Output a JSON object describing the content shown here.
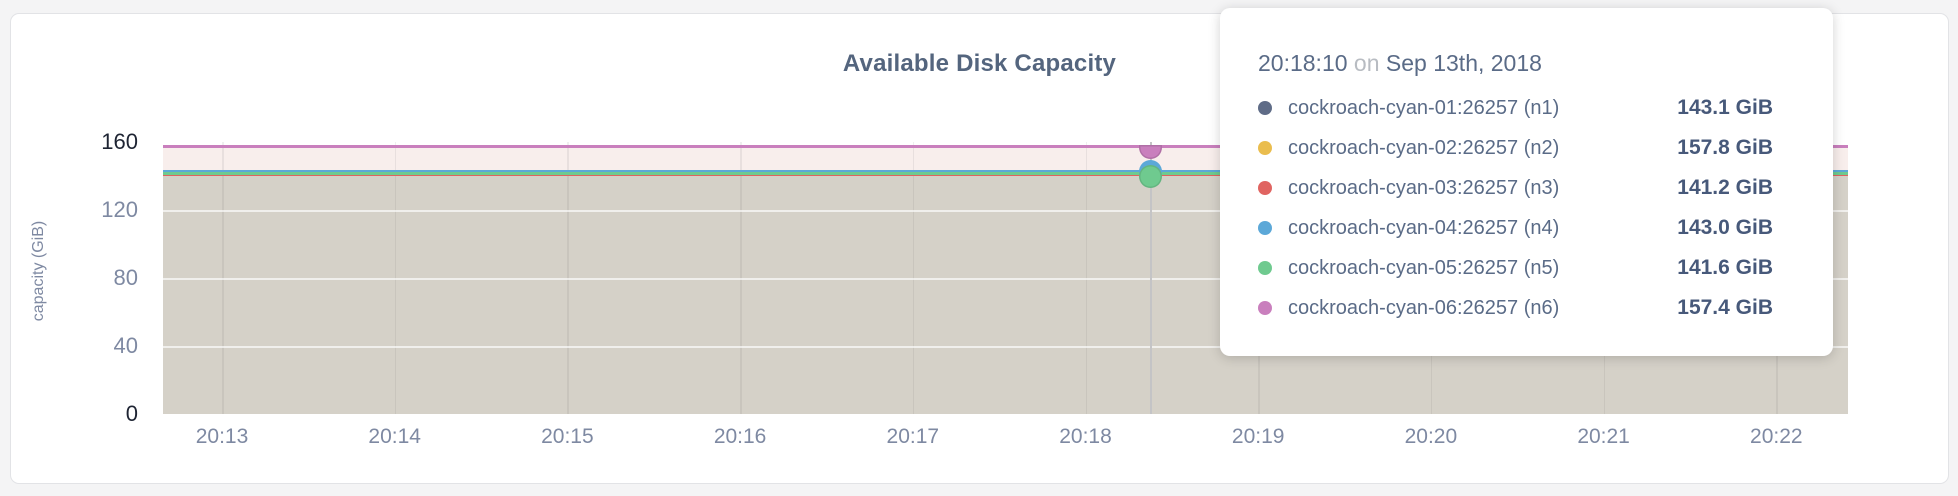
{
  "card": {
    "background": "#ffffff"
  },
  "chart_data": {
    "type": "area",
    "title": "Available Disk Capacity",
    "xlabel": "",
    "ylabel": "capacity (GiB)",
    "ylim": [
      0,
      160
    ],
    "y_ticks": [
      160,
      120,
      80,
      40,
      0
    ],
    "y_gridline_values": [
      120,
      80,
      40
    ],
    "x_tick_labels": [
      "20:13",
      "20:14",
      "20:15",
      "20:16",
      "20:17",
      "20:18",
      "20:19",
      "20:20",
      "20:21",
      "20:22"
    ],
    "grid": true,
    "legend_position": "tooltip-only",
    "series": [
      {
        "name": "cockroach-cyan-01:26257 (n1)",
        "node": "n1",
        "color": "#5f6c87",
        "value_gib": 143.1
      },
      {
        "name": "cockroach-cyan-02:26257 (n2)",
        "node": "n2",
        "color": "#eabd4e",
        "value_gib": 157.8
      },
      {
        "name": "cockroach-cyan-03:26257 (n3)",
        "node": "n3",
        "color": "#e06461",
        "value_gib": 141.2
      },
      {
        "name": "cockroach-cyan-04:26257 (n4)",
        "node": "n4",
        "color": "#5ca8d8",
        "value_gib": 143.0
      },
      {
        "name": "cockroach-cyan-05:26257 (n5)",
        "node": "n5",
        "color": "#6fca8f",
        "value_gib": 141.6
      },
      {
        "name": "cockroach-cyan-06:26257 (n6)",
        "node": "n6",
        "color": "#c97fbd",
        "value_gib": 157.4
      }
    ],
    "series_note": "all series are flat (constant) across the visible time window",
    "fill_colors": {
      "upper_band": "#f8eeec",
      "lower_band": "#d5d1c8"
    }
  },
  "tooltip": {
    "time": "20:18:10",
    "conjunction": "on",
    "date": "Sep 13th, 2018",
    "rows": [
      {
        "label": "cockroach-cyan-01:26257 (n1)",
        "value": "143.1 GiB",
        "color": "#5f6c87"
      },
      {
        "label": "cockroach-cyan-02:26257 (n2)",
        "value": "157.8 GiB",
        "color": "#eabd4e"
      },
      {
        "label": "cockroach-cyan-03:26257 (n3)",
        "value": "141.2 GiB",
        "color": "#e06461"
      },
      {
        "label": "cockroach-cyan-04:26257 (n4)",
        "value": "143.0 GiB",
        "color": "#5ca8d8"
      },
      {
        "label": "cockroach-cyan-05:26257 (n5)",
        "value": "141.6 GiB",
        "color": "#6fca8f"
      },
      {
        "label": "cockroach-cyan-06:26257 (n6)",
        "value": "157.4 GiB",
        "color": "#c97fbd"
      }
    ]
  }
}
